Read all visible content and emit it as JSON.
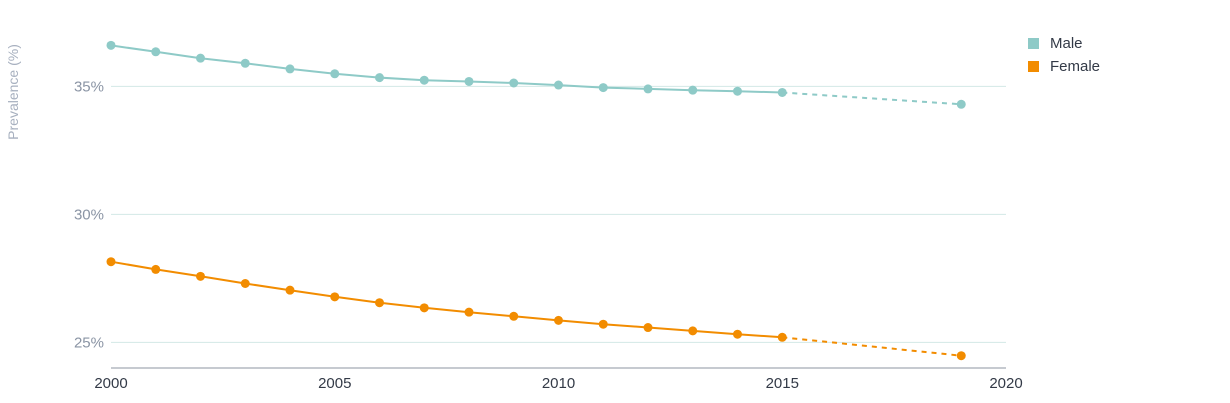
{
  "chart_data": {
    "type": "line",
    "ylabel": "Prevalence (%)",
    "xlabel": "",
    "xlim": [
      2000,
      2020
    ],
    "ylim": [
      24,
      37.2
    ],
    "x_ticks": [
      2000,
      2005,
      2010,
      2015,
      2020
    ],
    "y_ticks": [
      25,
      30,
      35
    ],
    "y_tick_labels": [
      "25%",
      "30%",
      "35%"
    ],
    "grid": "horizontal",
    "legend_position": "top-right",
    "series": [
      {
        "name": "Male",
        "color": "#8ecac7",
        "x": [
          2000,
          2001,
          2002,
          2003,
          2004,
          2005,
          2006,
          2007,
          2008,
          2009,
          2010,
          2011,
          2012,
          2013,
          2014,
          2015
        ],
        "values": [
          36.6,
          36.35,
          36.1,
          35.9,
          35.68,
          35.49,
          35.34,
          35.24,
          35.19,
          35.13,
          35.05,
          34.95,
          34.9,
          34.85,
          34.81,
          34.76
        ],
        "projection": {
          "x": [
            2015,
            2019
          ],
          "values": [
            34.76,
            34.3
          ]
        }
      },
      {
        "name": "Female",
        "color": "#f28c00",
        "x": [
          2000,
          2001,
          2002,
          2003,
          2004,
          2005,
          2006,
          2007,
          2008,
          2009,
          2010,
          2011,
          2012,
          2013,
          2014,
          2015
        ],
        "values": [
          28.15,
          27.85,
          27.58,
          27.3,
          27.04,
          26.78,
          26.55,
          26.35,
          26.18,
          26.02,
          25.86,
          25.71,
          25.58,
          25.45,
          25.32,
          25.2
        ],
        "projection": {
          "x": [
            2015,
            2019
          ],
          "values": [
            25.2,
            24.48
          ]
        }
      }
    ]
  }
}
